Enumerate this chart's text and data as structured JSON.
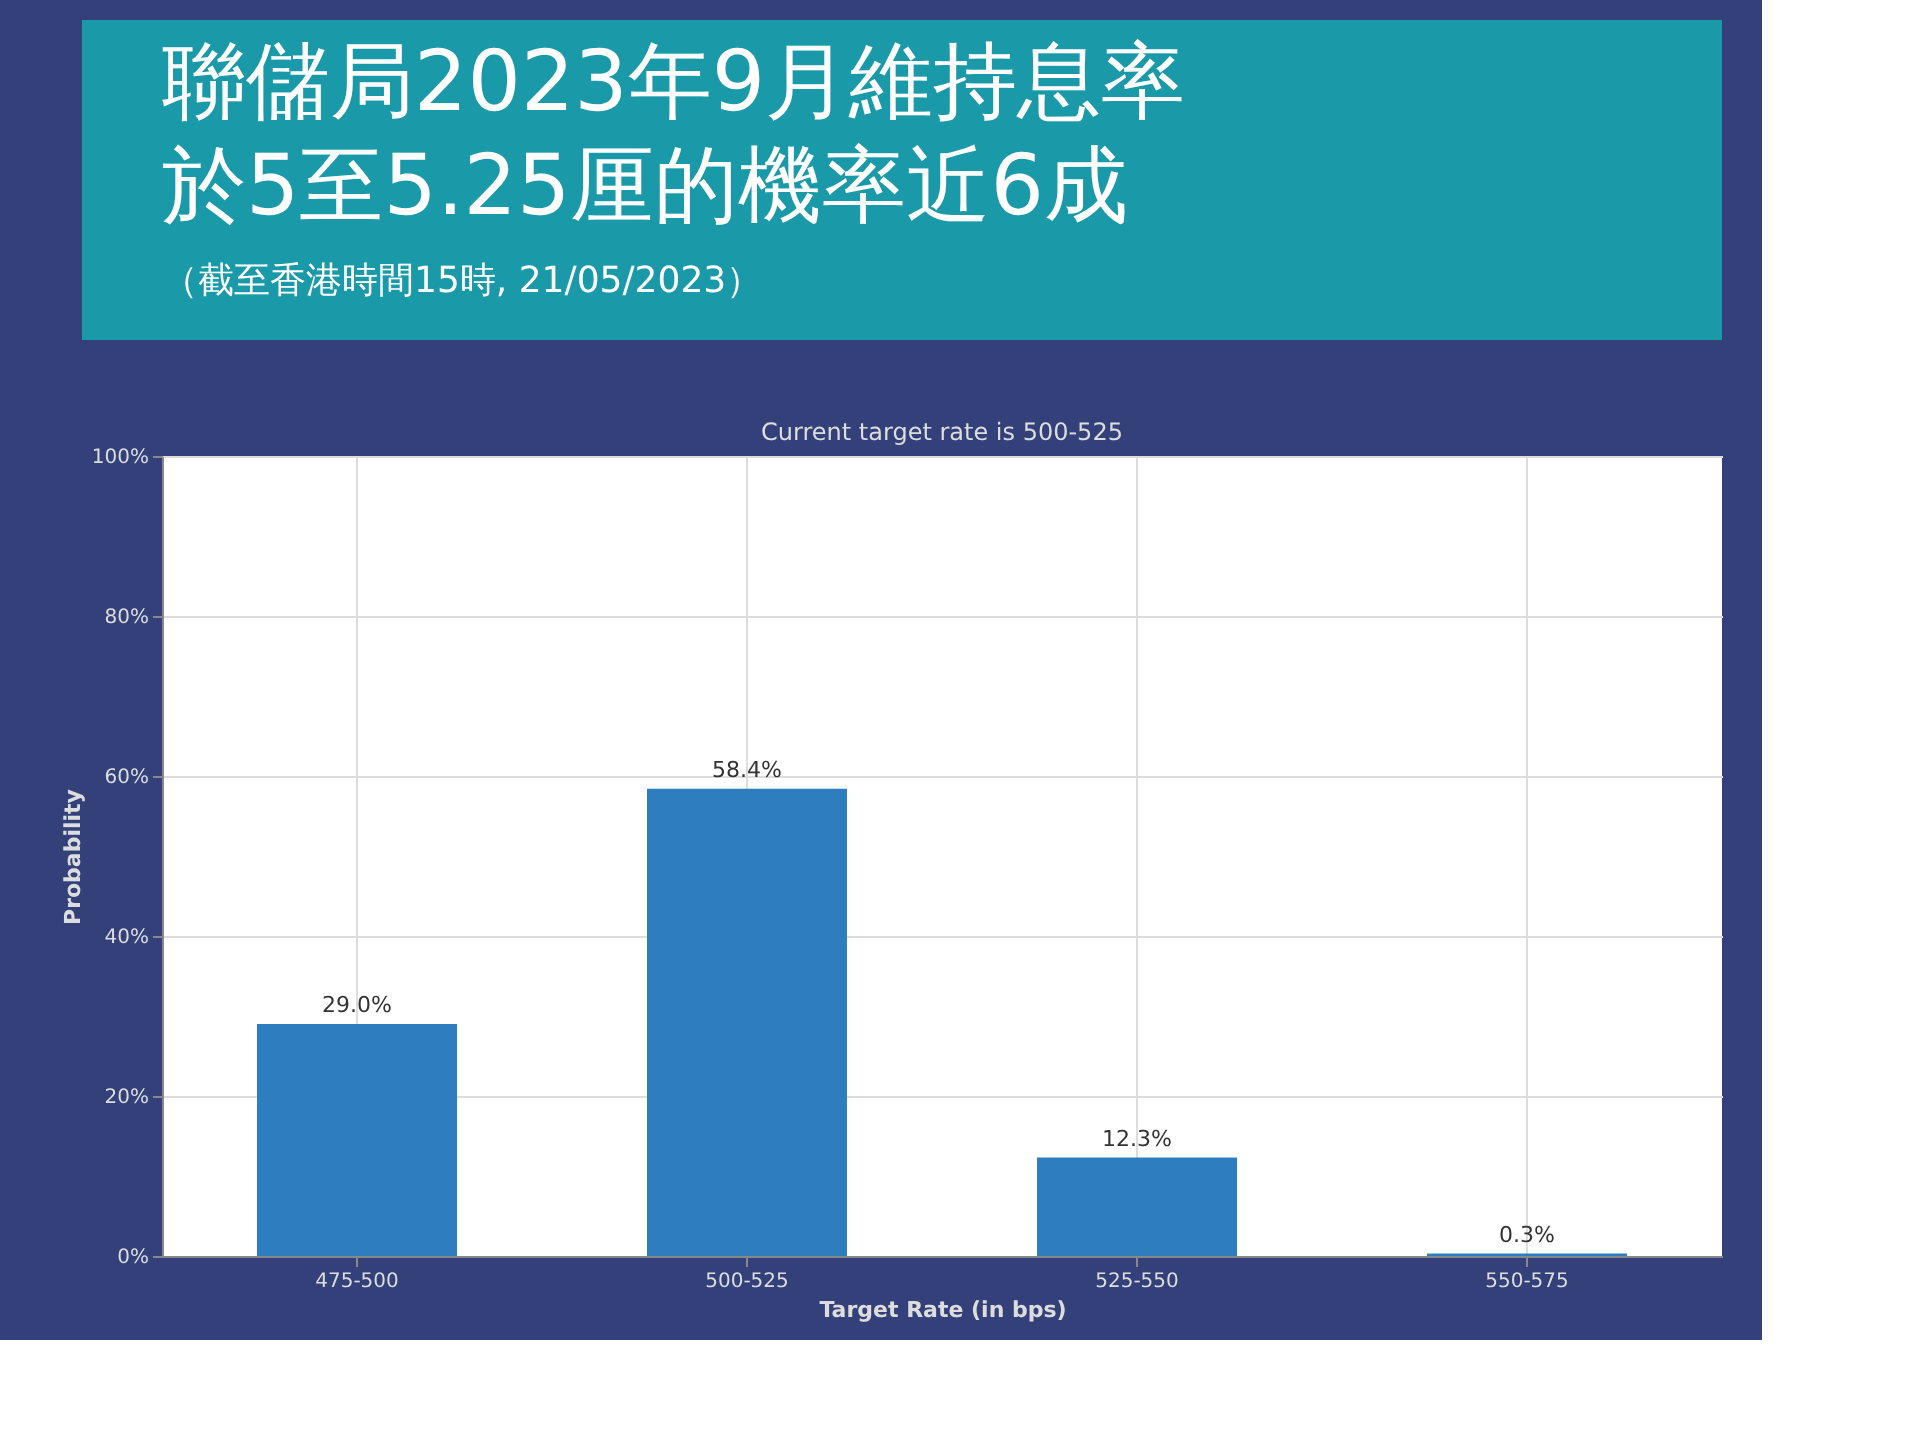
{
  "chart_data": {
    "type": "bar",
    "title": "聯儲局2023年9月維持息率於5至5.25厘的機率近6成",
    "subtitle": "（截至香港時間15時, 21/05/2023）",
    "annotations": [
      "Current target rate is 500-525"
    ],
    "xlabel": "Target Rate (in bps)",
    "ylabel": "Probability",
    "categories": [
      "475-500",
      "500-525",
      "525-550",
      "550-575"
    ],
    "values": [
      29.0,
      58.4,
      12.3,
      0.3
    ],
    "value_labels": [
      "29.0%",
      "58.4%",
      "12.3%",
      "0.3%"
    ],
    "color": "#2e7ebf",
    "ylim": [
      0,
      100
    ],
    "yticks": [
      {
        "value": 0,
        "label": "0%"
      },
      {
        "value": 20,
        "label": "20%"
      },
      {
        "value": 40,
        "label": "40%"
      },
      {
        "value": 60,
        "label": "60%"
      },
      {
        "value": 80,
        "label": "80%"
      },
      {
        "value": 100,
        "label": "100%"
      }
    ],
    "grid": true
  }
}
